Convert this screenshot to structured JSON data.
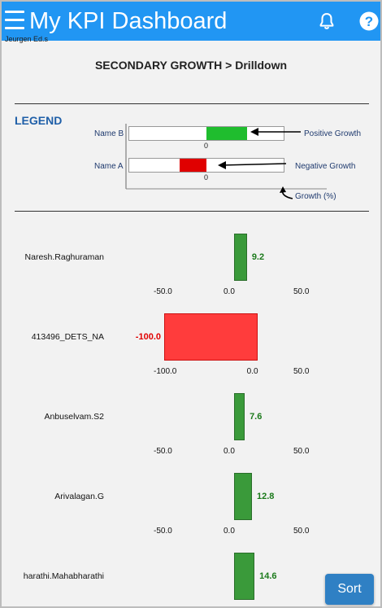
{
  "header": {
    "title": "My KPI Dashboard",
    "subtitle": "Jeurgen Ed.s"
  },
  "page": {
    "drill_title": "SECONDARY GROWTH > Drilldown"
  },
  "legend": {
    "title": "LEGEND",
    "rows": [
      {
        "name": "Name B",
        "note": "Positive Growth",
        "zero": "0"
      },
      {
        "name": "Name A",
        "note": "Negative Growth",
        "zero": "0"
      }
    ],
    "axis_note": "Growth (%)"
  },
  "colors": {
    "appbar": "#2196f3",
    "positive": "#3a9a3a",
    "negative": "#ff3c3c",
    "legend_positive": "#1fbd2e",
    "legend_negative": "#e00000"
  },
  "icons": {
    "menu": "menu-icon",
    "bell": "bell-icon",
    "help": "help-icon"
  },
  "chart_data": {
    "type": "bar",
    "categories": [
      "Naresh.Raghuraman",
      "413496_DETS_NA",
      "Anbuselvam.S2",
      "Arivalagan.G",
      "harathi.Mahabharathi"
    ],
    "values": [
      9.2,
      -100.0,
      7.6,
      12.8,
      14.6
    ],
    "value_labels": [
      "9.2",
      "-100.0",
      "7.6",
      "12.8",
      "14.6"
    ],
    "axes": [
      {
        "ticks": [
          "-50.0",
          "0.0",
          "50.0"
        ],
        "range": [
          -50,
          50
        ]
      },
      {
        "ticks": [
          "-100.0",
          "0.0",
          "50.0"
        ],
        "range": [
          -100,
          50
        ]
      },
      {
        "ticks": [
          "-50.0",
          "0.0",
          "50.0"
        ],
        "range": [
          -50,
          50
        ]
      },
      {
        "ticks": [
          "-50.0",
          "0.0",
          "50.0"
        ],
        "range": [
          -50,
          50
        ]
      },
      {
        "ticks": [],
        "range": [
          -50,
          50
        ]
      }
    ]
  },
  "actions": {
    "sort_label": "Sort"
  }
}
